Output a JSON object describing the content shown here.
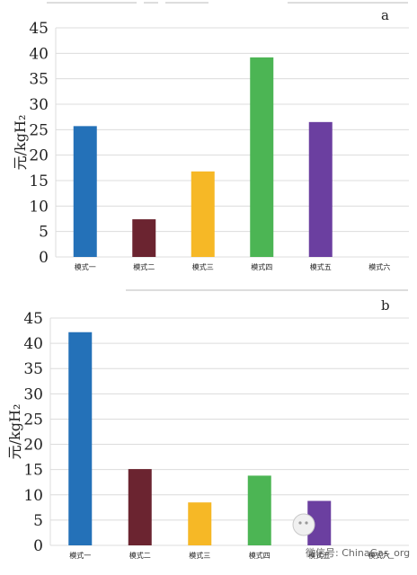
{
  "chart_data": [
    {
      "type": "bar",
      "panel_label": "a",
      "ylabel": "元/kgH₂",
      "ylim": [
        0,
        45
      ],
      "yticks": [
        0,
        5,
        10,
        15,
        20,
        25,
        30,
        35,
        40,
        45
      ],
      "grid": true,
      "categories": [
        "模式一",
        "模式二",
        "模式三",
        "模式四",
        "模式五",
        "模式六"
      ],
      "values": [
        25.7,
        7.4,
        16.8,
        39.2,
        26.5,
        null
      ],
      "colors": [
        "#2471b8",
        "#6b2430",
        "#f6b826",
        "#4cb554",
        "#6b3fa0",
        "#cccccc"
      ]
    },
    {
      "type": "bar",
      "panel_label": "b",
      "ylabel": "元/kgH₂",
      "ylim": [
        0,
        45
      ],
      "yticks": [
        0,
        5,
        10,
        15,
        20,
        25,
        30,
        35,
        40,
        45
      ],
      "grid": true,
      "categories": [
        "模式一",
        "模式二",
        "模式三",
        "模式四",
        "模式五",
        "模式六"
      ],
      "values": [
        42.2,
        15.1,
        8.5,
        13.8,
        8.8,
        null
      ],
      "colors": [
        "#2471b8",
        "#6b2430",
        "#f6b826",
        "#4cb554",
        "#6b3fa0",
        "#cccccc"
      ]
    }
  ],
  "watermark": {
    "text": "微信号: ChinaGas_org"
  }
}
